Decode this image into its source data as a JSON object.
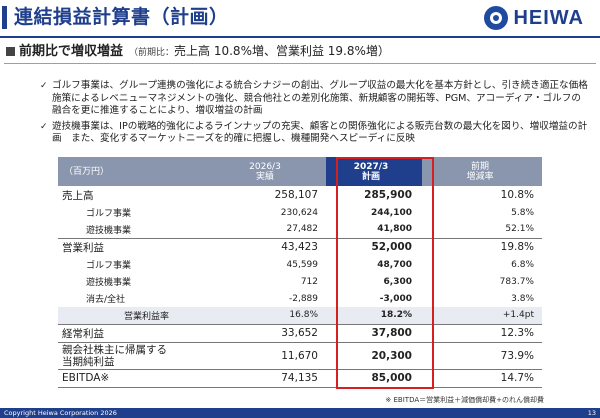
{
  "header": {
    "title": "連結損益計算書（計画）",
    "logo_text": "HEIWA"
  },
  "section": {
    "heading": "前期比で増収増益",
    "sub_prefix": "（前期比：",
    "sub_rest": "売上高 10.8%増、営業利益 19.8%増）"
  },
  "bullets": [
    "ゴルフ事業は、グループ連携の強化による統合シナジーの創出、グループ収益の最大化を基本方針とし、引き続き適正な価格施策によるレベニューマネジメントの強化、競合他社との差別化施策、新規顧客の開拓等、PGM、アコーディア・ゴルフの融合を更に推進することにより、増収増益の計画",
    "遊技機事業は、IPの戦略的強化によるラインナップの充実、顧客との関係強化による販売台数の最大化を図り、増収増益の計画　また、変化するマーケットニーズを的確に把握し、機種開発へスピーディに反映"
  ],
  "table": {
    "unit_label": "（百万円）",
    "col_actual_line1": "2026/3",
    "col_actual_line2": "実績",
    "col_plan_line1": "2027/3",
    "col_plan_line2": "計画",
    "col_change_line1": "前期",
    "col_change_line2": "増減率",
    "rows": [
      {
        "label": "売上高",
        "actual": "258,107",
        "plan": "285,900",
        "change": "10.8%"
      },
      {
        "label": "ゴルフ事業",
        "actual": "230,624",
        "plan": "244,100",
        "change": "5.8%"
      },
      {
        "label": "遊技機事業",
        "actual": "27,482",
        "plan": "41,800",
        "change": "52.1%"
      },
      {
        "label": "営業利益",
        "actual": "43,423",
        "plan": "52,000",
        "change": "19.8%"
      },
      {
        "label": "ゴルフ事業",
        "actual": "45,599",
        "plan": "48,700",
        "change": "6.8%"
      },
      {
        "label": "遊技機事業",
        "actual": "712",
        "plan": "6,300",
        "change": "783.7%"
      },
      {
        "label": "消去/全社",
        "actual": "-2,889",
        "plan": "-3,000",
        "change": "3.8%"
      },
      {
        "label": "営業利益率",
        "actual": "16.8%",
        "plan": "18.2%",
        "change": "+1.4pt"
      },
      {
        "label": "経常利益",
        "actual": "33,652",
        "plan": "37,800",
        "change": "12.3%"
      },
      {
        "label_line1": "親会社株主に帰属する",
        "label_line2": "当期純利益",
        "actual": "11,670",
        "plan": "20,300",
        "change": "73.9%"
      },
      {
        "label": "EBITDA※",
        "actual": "74,135",
        "plan": "85,000",
        "change": "14.7%"
      }
    ]
  },
  "note": "※ EBITDA＝営業利益＋減価償却費+のれん償却費",
  "footer": {
    "copyright": "Copyright  Heiwa Corporation  2026",
    "page": "13"
  },
  "colors": {
    "brand": "#1f3f8c",
    "header_gray": "#8a96ad",
    "highlight_red": "#d61f1f"
  }
}
